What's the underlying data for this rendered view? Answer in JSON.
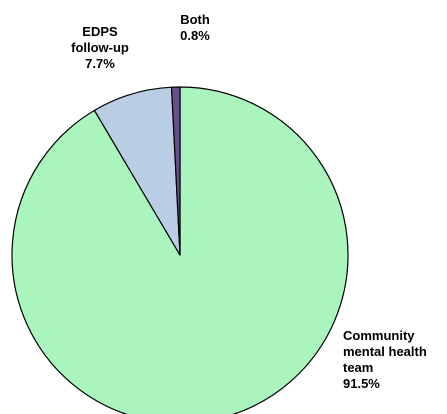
{
  "chart_data": {
    "type": "pie",
    "categories": [
      "Community mental health team",
      "EDPS follow-up",
      "Both"
    ],
    "values": [
      91.5,
      7.7,
      0.8
    ],
    "value_labels": [
      "91.5%",
      "7.7%",
      "0.8%"
    ],
    "colors": [
      "#a9f5bd",
      "#b9cde5",
      "#6a4d8c"
    ]
  }
}
